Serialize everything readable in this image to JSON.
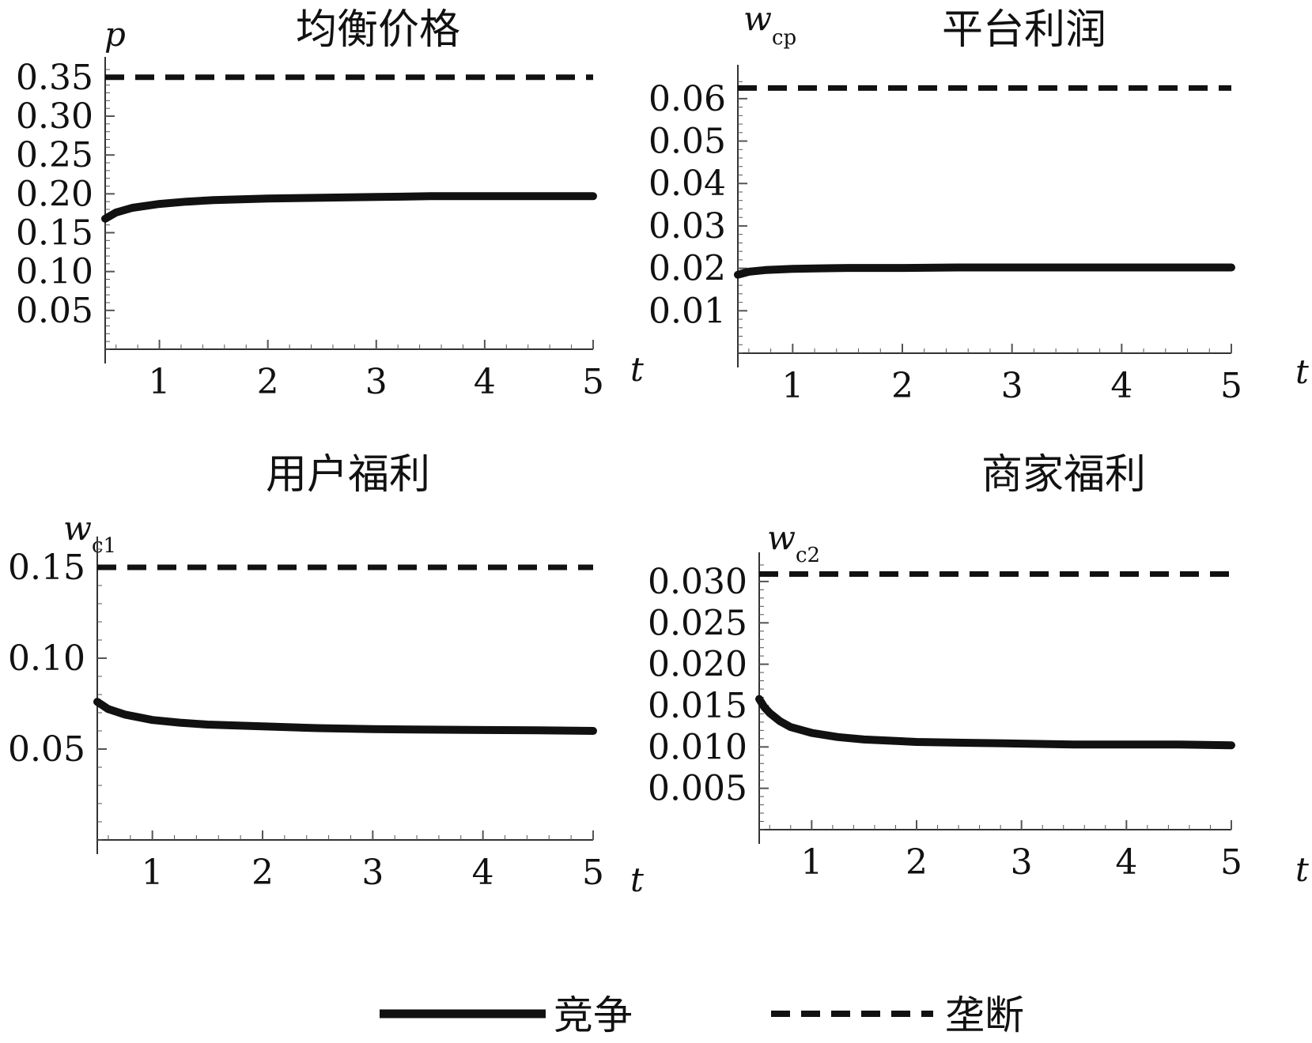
{
  "chart_data": [
    {
      "type": "line",
      "title": "均衡价格",
      "ylabel": {
        "main": "p",
        "sub": ""
      },
      "xlabel": "t",
      "xlim": [
        0.5,
        5
      ],
      "ylim": [
        0,
        0.36
      ],
      "xticks": [
        "1",
        "2",
        "3",
        "4",
        "5"
      ],
      "yticks": [
        "0.05",
        "0.10",
        "0.15",
        "0.20",
        "0.25",
        "0.30",
        "0.35"
      ],
      "series": [
        {
          "name": "竞争",
          "style": "solid",
          "x": [
            0.5,
            0.6,
            0.75,
            1.0,
            1.25,
            1.5,
            2.0,
            2.5,
            3.0,
            3.5,
            4.0,
            4.5,
            5.0
          ],
          "y": [
            0.168,
            0.176,
            0.182,
            0.187,
            0.19,
            0.192,
            0.194,
            0.195,
            0.196,
            0.197,
            0.197,
            0.197,
            0.197
          ]
        },
        {
          "name": "垄断",
          "style": "dashed",
          "x": [
            0.5,
            5.0
          ],
          "y": [
            0.35,
            0.35
          ]
        }
      ]
    },
    {
      "type": "line",
      "title": "平台利润",
      "ylabel": {
        "main": "w",
        "sub": "cp"
      },
      "xlabel": "t",
      "xlim": [
        0.5,
        5
      ],
      "ylim": [
        0,
        0.065
      ],
      "xticks": [
        "1",
        "2",
        "3",
        "4",
        "5"
      ],
      "yticks": [
        "0.01",
        "0.02",
        "0.03",
        "0.04",
        "0.05",
        "0.06"
      ],
      "series": [
        {
          "name": "竞争",
          "style": "solid",
          "x": [
            0.5,
            0.6,
            0.75,
            1.0,
            1.25,
            1.5,
            2.0,
            2.5,
            3.0,
            4.0,
            5.0
          ],
          "y": [
            0.0185,
            0.0192,
            0.0196,
            0.0199,
            0.02,
            0.0201,
            0.0201,
            0.0202,
            0.0202,
            0.0202,
            0.0202
          ]
        },
        {
          "name": "垄断",
          "style": "dashed",
          "x": [
            0.5,
            5.0
          ],
          "y": [
            0.0625,
            0.0625
          ]
        }
      ]
    },
    {
      "type": "line",
      "title": "用户福利",
      "ylabel": {
        "main": "w",
        "sub": "c1"
      },
      "xlabel": "t",
      "xlim": [
        0.5,
        5
      ],
      "ylim": [
        0,
        0.16
      ],
      "xticks": [
        "1",
        "2",
        "3",
        "4",
        "5"
      ],
      "yticks": [
        "0.05",
        "0.10",
        "0.15"
      ],
      "series": [
        {
          "name": "竞争",
          "style": "solid",
          "x": [
            0.5,
            0.6,
            0.75,
            1.0,
            1.25,
            1.5,
            2.0,
            2.5,
            3.0,
            3.5,
            4.0,
            4.5,
            5.0
          ],
          "y": [
            0.076,
            0.072,
            0.069,
            0.066,
            0.0645,
            0.0635,
            0.0625,
            0.0615,
            0.061,
            0.0607,
            0.0605,
            0.0603,
            0.06
          ]
        },
        {
          "name": "垄断",
          "style": "dashed",
          "x": [
            0.5,
            5.0
          ],
          "y": [
            0.15,
            0.15
          ]
        }
      ]
    },
    {
      "type": "line",
      "title": "商家福利",
      "ylabel": {
        "main": "w",
        "sub": "c2"
      },
      "xlabel": "t",
      "xlim": [
        0.5,
        5
      ],
      "ylim": [
        0,
        0.032
      ],
      "xticks": [
        "1",
        "2",
        "3",
        "4",
        "5"
      ],
      "yticks": [
        "0.005",
        "0.010",
        "0.015",
        "0.020",
        "0.025",
        "0.030"
      ],
      "series": [
        {
          "name": "竞争",
          "style": "solid",
          "x": [
            0.5,
            0.55,
            0.6,
            0.7,
            0.8,
            1.0,
            1.25,
            1.5,
            2.0,
            2.5,
            3.0,
            3.5,
            4.0,
            4.5,
            5.0
          ],
          "y": [
            0.0158,
            0.0148,
            0.0141,
            0.0131,
            0.0124,
            0.0117,
            0.0112,
            0.0109,
            0.0106,
            0.0105,
            0.0104,
            0.0103,
            0.0103,
            0.0103,
            0.0102
          ]
        },
        {
          "name": "垄断",
          "style": "dashed",
          "x": [
            0.5,
            5.0
          ],
          "y": [
            0.0309,
            0.0309
          ]
        }
      ]
    }
  ],
  "legend": {
    "items": [
      {
        "label": "竞争",
        "style": "solid"
      },
      {
        "label": "垄断",
        "style": "dashed"
      }
    ]
  }
}
